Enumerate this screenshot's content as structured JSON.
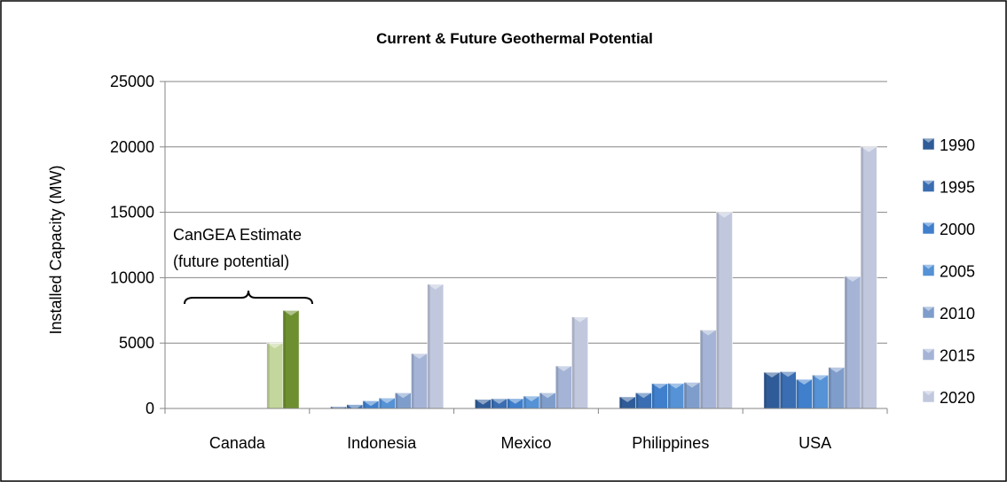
{
  "chart_data": {
    "type": "bar",
    "title": "Current & Future Geothermal Potential",
    "xlabel": "",
    "ylabel": "Installed Capacity (MW)",
    "ylim": [
      0,
      25000
    ],
    "yticks": [
      0,
      5000,
      10000,
      15000,
      20000,
      25000
    ],
    "grid": true,
    "legend_position": "right",
    "categories": [
      "Canada",
      "Indonesia",
      "Mexico",
      "Philippines",
      "USA"
    ],
    "series": [
      {
        "name": "1990",
        "values": [
          0,
          140,
          700,
          890,
          2770
        ]
      },
      {
        "name": "1995",
        "values": [
          0,
          300,
          750,
          1200,
          2820
        ]
      },
      {
        "name": "2000",
        "values": [
          0,
          590,
          760,
          1910,
          2230
        ]
      },
      {
        "name": "2005",
        "values": [
          0,
          800,
          950,
          1930,
          2560
        ]
      },
      {
        "name": "2010",
        "values": [
          0,
          1200,
          1200,
          2000,
          3150
        ]
      },
      {
        "name": "2015",
        "values": [
          5000,
          4200,
          3250,
          6000,
          10100
        ]
      },
      {
        "name": "2020",
        "values": [
          7500,
          9500,
          7000,
          15000,
          20000
        ]
      }
    ],
    "annotation": {
      "lines": [
        "CanGEA Estimate",
        "(future potential)"
      ],
      "category": "Canada"
    },
    "colors": {
      "1990": "#2f5c98",
      "1995": "#3a6db1",
      "2000": "#3f7fcc",
      "2005": "#5592d6",
      "2010": "#7f9dcb",
      "2015": "#a5b4d6",
      "2020": "#c1c8de",
      "canada_2015": "#c3d69b",
      "canada_2020": "#6e8f2f",
      "grid": "#868686",
      "border": "#000000"
    }
  }
}
